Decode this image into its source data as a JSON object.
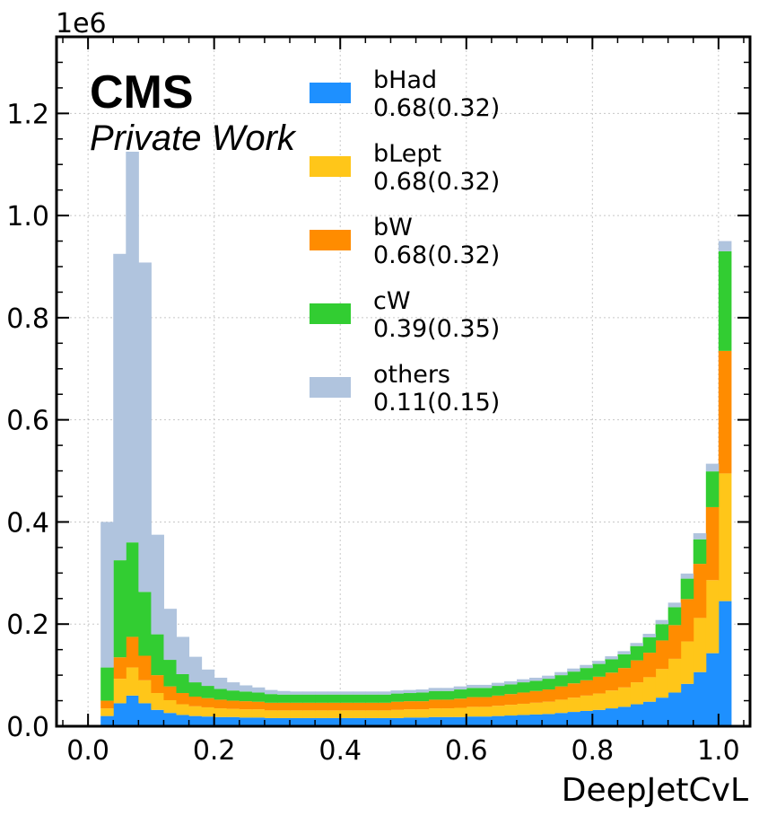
{
  "chart_data": {
    "type": "bar",
    "stacked": true,
    "histogram": true,
    "xlabel": "DeepJetCvL",
    "ylabel": "",
    "y_exponent": "1e6",
    "xlim": [
      -0.05,
      1.05
    ],
    "ylim": [
      0,
      1.35
    ],
    "x_ticks": [
      "0.0",
      "0.2",
      "0.4",
      "0.6",
      "0.8",
      "1.0"
    ],
    "y_ticks": [
      "0.0",
      "0.2",
      "0.4",
      "0.6",
      "0.8",
      "1.0",
      "1.2"
    ],
    "grid": true,
    "legend_position": "top-center",
    "experiment_label": "CMS",
    "experiment_sublabel": "Private Work",
    "bin_edges_start": 0.02,
    "bin_width": 0.02,
    "series": [
      {
        "name": "bHad",
        "note": "0.68(0.32)",
        "color": "#1e90ff",
        "values": [
          0.02,
          0.045,
          0.06,
          0.045,
          0.032,
          0.026,
          0.022,
          0.02,
          0.019,
          0.018,
          0.018,
          0.017,
          0.017,
          0.016,
          0.016,
          0.016,
          0.016,
          0.016,
          0.016,
          0.016,
          0.016,
          0.016,
          0.016,
          0.016,
          0.017,
          0.017,
          0.018,
          0.018,
          0.018,
          0.019,
          0.019,
          0.02,
          0.021,
          0.022,
          0.023,
          0.024,
          0.026,
          0.028,
          0.03,
          0.032,
          0.035,
          0.038,
          0.043,
          0.048,
          0.056,
          0.066,
          0.083,
          0.106,
          0.143,
          0.245
        ]
      },
      {
        "name": "bLept",
        "note": "0.68(0.32)",
        "color": "#ffc619",
        "values": [
          0.015,
          0.048,
          0.055,
          0.045,
          0.033,
          0.025,
          0.021,
          0.019,
          0.018,
          0.017,
          0.016,
          0.016,
          0.016,
          0.015,
          0.015,
          0.015,
          0.015,
          0.015,
          0.015,
          0.015,
          0.015,
          0.015,
          0.015,
          0.016,
          0.016,
          0.016,
          0.017,
          0.017,
          0.018,
          0.019,
          0.019,
          0.02,
          0.021,
          0.022,
          0.023,
          0.024,
          0.026,
          0.028,
          0.03,
          0.032,
          0.035,
          0.038,
          0.043,
          0.048,
          0.056,
          0.066,
          0.083,
          0.106,
          0.143,
          0.25
        ]
      },
      {
        "name": "bW",
        "note": "0.68(0.32)",
        "color": "#ff8c00",
        "values": [
          0.015,
          0.042,
          0.06,
          0.048,
          0.035,
          0.027,
          0.022,
          0.019,
          0.018,
          0.017,
          0.016,
          0.016,
          0.015,
          0.015,
          0.015,
          0.015,
          0.015,
          0.015,
          0.015,
          0.015,
          0.015,
          0.015,
          0.015,
          0.016,
          0.016,
          0.016,
          0.017,
          0.017,
          0.018,
          0.019,
          0.019,
          0.02,
          0.021,
          0.022,
          0.023,
          0.024,
          0.026,
          0.028,
          0.03,
          0.033,
          0.035,
          0.038,
          0.043,
          0.048,
          0.056,
          0.066,
          0.083,
          0.106,
          0.143,
          0.24
        ]
      },
      {
        "name": "cW",
        "note": "0.39(0.35)",
        "color": "#32cd32",
        "values": [
          0.065,
          0.19,
          0.185,
          0.125,
          0.08,
          0.052,
          0.037,
          0.028,
          0.024,
          0.021,
          0.02,
          0.019,
          0.018,
          0.017,
          0.016,
          0.016,
          0.016,
          0.016,
          0.016,
          0.016,
          0.016,
          0.016,
          0.016,
          0.016,
          0.016,
          0.017,
          0.017,
          0.017,
          0.018,
          0.018,
          0.018,
          0.019,
          0.019,
          0.02,
          0.02,
          0.021,
          0.022,
          0.023,
          0.024,
          0.025,
          0.026,
          0.027,
          0.028,
          0.03,
          0.032,
          0.035,
          0.04,
          0.048,
          0.07,
          0.195
        ]
      },
      {
        "name": "others",
        "note": "0.11(0.15)",
        "color": "#b0c4de",
        "values": [
          0.285,
          0.6,
          0.765,
          0.645,
          0.195,
          0.1,
          0.073,
          0.05,
          0.032,
          0.022,
          0.016,
          0.012,
          0.01,
          0.008,
          0.007,
          0.006,
          0.006,
          0.006,
          0.006,
          0.006,
          0.006,
          0.006,
          0.006,
          0.006,
          0.006,
          0.006,
          0.006,
          0.006,
          0.006,
          0.006,
          0.006,
          0.006,
          0.006,
          0.006,
          0.006,
          0.006,
          0.006,
          0.006,
          0.006,
          0.006,
          0.006,
          0.006,
          0.006,
          0.007,
          0.008,
          0.009,
          0.01,
          0.012,
          0.015,
          0.02
        ]
      }
    ]
  }
}
